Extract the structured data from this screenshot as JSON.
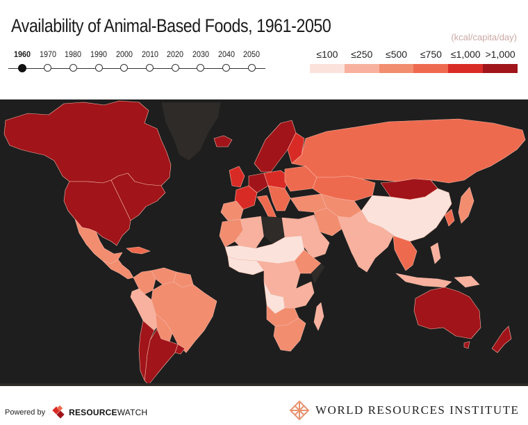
{
  "title": "Availability of Animal-Based Foods, 1961-2050",
  "timeline": {
    "years": [
      "1960",
      "1970",
      "1980",
      "1990",
      "2000",
      "2010",
      "2020",
      "2030",
      "2040",
      "2050"
    ],
    "selected": "1960"
  },
  "units": "(kcal/capita/day)",
  "legend": [
    {
      "label": "≤100",
      "color": "#fbe3dc"
    },
    {
      "label": "≤250",
      "color": "#f7b19e"
    },
    {
      "label": "≤500",
      "color": "#f28d70"
    },
    {
      "label": "≤750",
      "color": "#ee6a4f"
    },
    {
      "label": "≤1,000",
      "color": "#d92b26"
    },
    {
      "label": ">1,000",
      "color": "#a0141a"
    }
  ],
  "colors": {
    "ocean": "#1e1e1e",
    "no_data": "#2e2b28",
    "border": "#f6b7a6"
  },
  "footer": {
    "powered_by": "Powered by",
    "resourcewatch_bold": "RESOURCE",
    "resourcewatch_light": "WATCH",
    "wri": "WORLD RESOURCES INSTITUTE"
  }
}
